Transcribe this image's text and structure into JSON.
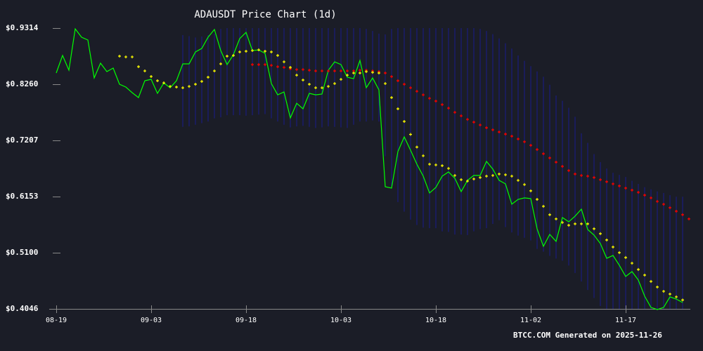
{
  "chart_data": {
    "type": "line",
    "title": "ADAUSDT Price Chart (1d)",
    "xlabel": "",
    "ylabel": "",
    "ylim": [
      0.4046,
      0.9314
    ],
    "y_ticks": [
      "$0.9314",
      "$0.8260",
      "$0.7207",
      "$0.6153",
      "$0.5100",
      "$0.4046"
    ],
    "y_tick_values": [
      0.9314,
      0.826,
      0.7207,
      0.6153,
      0.51,
      0.4046
    ],
    "x_ticks": [
      "08-19",
      "09-03",
      "09-18",
      "10-03",
      "10-18",
      "11-02",
      "11-17"
    ],
    "x_tick_day_index": [
      0,
      15,
      30,
      45,
      60,
      75,
      90
    ],
    "start_date": "08-19",
    "end_date": "11-26",
    "grid": false,
    "legend": "none",
    "series": [
      {
        "name": "Price",
        "color": "#00ff00",
        "style": "line",
        "start_index": 0,
        "values": [
          0.8471,
          0.88,
          0.8524,
          0.93,
          0.9143,
          0.909,
          0.8379,
          0.8655,
          0.8497,
          0.8563,
          0.826,
          0.8208,
          0.8102,
          0.801,
          0.8326,
          0.8352,
          0.8089,
          0.8286,
          0.8194,
          0.8326,
          0.8642,
          0.8642,
          0.8866,
          0.8932,
          0.9143,
          0.9288,
          0.8892,
          0.8629,
          0.8813,
          0.9116,
          0.9234,
          0.8892,
          0.8905,
          0.884,
          0.8273,
          0.8062,
          0.8115,
          0.7628,
          0.7904,
          0.7799,
          0.8089,
          0.8062,
          0.8076,
          0.8523,
          0.8681,
          0.8629,
          0.8392,
          0.8365,
          0.8708,
          0.8194,
          0.8379,
          0.8155,
          0.6338,
          0.6312,
          0.6997,
          0.7273,
          0.7023,
          0.676,
          0.6536,
          0.622,
          0.6325,
          0.6536,
          0.6615,
          0.6497,
          0.6246,
          0.6457,
          0.6549,
          0.6549,
          0.6813,
          0.6668,
          0.6457,
          0.6391,
          0.6009,
          0.6101,
          0.6128,
          0.6115,
          0.5549,
          0.5219,
          0.5443,
          0.5311,
          0.5759,
          0.568,
          0.5786,
          0.5918,
          0.5536,
          0.543,
          0.5272,
          0.4995,
          0.5048,
          0.4864,
          0.4653,
          0.4745,
          0.4587,
          0.4284,
          0.4073,
          0.4033,
          0.4073,
          0.4271,
          0.4231,
          0.4165
        ]
      },
      {
        "name": "SMA20",
        "color": "#ffff00",
        "style": "markers",
        "start_index": 10,
        "values": [
          0.8787,
          0.8773,
          0.8773,
          0.859,
          0.851,
          0.8405,
          0.8326,
          0.8286,
          0.822,
          0.8208,
          0.8194,
          0.822,
          0.826,
          0.8313,
          0.8392,
          0.851,
          0.8642,
          0.8787,
          0.88,
          0.8866,
          0.8879,
          0.8892,
          0.8905,
          0.8879,
          0.8866,
          0.88,
          0.8681,
          0.8576,
          0.8431,
          0.8339,
          0.826,
          0.8194,
          0.8194,
          0.822,
          0.8273,
          0.8352,
          0.8431,
          0.8471,
          0.8471,
          0.8497,
          0.8483,
          0.8471,
          0.8273,
          0.801,
          0.7799,
          0.7562,
          0.7319,
          0.7082,
          0.6918,
          0.676,
          0.6747,
          0.6733,
          0.6681,
          0.6549,
          0.647,
          0.6444,
          0.6483,
          0.651,
          0.6536,
          0.6549,
          0.6576,
          0.6562,
          0.6536,
          0.6457,
          0.6378,
          0.626,
          0.6101,
          0.597,
          0.5812,
          0.5733,
          0.5667,
          0.5615,
          0.5641,
          0.5641,
          0.5641,
          0.5549,
          0.5457,
          0.5338,
          0.5207,
          0.5101,
          0.5009,
          0.4903,
          0.4785,
          0.468,
          0.4561,
          0.4456,
          0.4376,
          0.4324,
          0.4271,
          0.4212
        ]
      },
      {
        "name": "SMA50",
        "color": "#ff0000",
        "style": "markers",
        "start_index": 31,
        "values": [
          0.8629,
          0.8629,
          0.8629,
          0.8615,
          0.8589,
          0.8576,
          0.855,
          0.8536,
          0.8536,
          0.8523,
          0.851,
          0.851,
          0.851,
          0.851,
          0.851,
          0.851,
          0.851,
          0.8523,
          0.8523,
          0.851,
          0.8497,
          0.8471,
          0.8404,
          0.8326,
          0.826,
          0.8194,
          0.8128,
          0.8062,
          0.7996,
          0.7944,
          0.7878,
          0.7812,
          0.7733,
          0.7667,
          0.7601,
          0.7549,
          0.7496,
          0.7444,
          0.7405,
          0.7365,
          0.7325,
          0.7286,
          0.7233,
          0.7181,
          0.7115,
          0.7036,
          0.6957,
          0.6878,
          0.6799,
          0.672,
          0.6641,
          0.6576,
          0.6549,
          0.6536,
          0.651,
          0.647,
          0.6431,
          0.6391,
          0.6352,
          0.6312,
          0.6273,
          0.6233,
          0.618,
          0.6128,
          0.6062,
          0.6009,
          0.5944,
          0.5878,
          0.5812,
          0.5733
        ]
      }
    ],
    "bands": {
      "name": "Bollinger Bands",
      "color": "#1a1a8c",
      "style": "vertical-lines",
      "start_index": 20,
      "upper": [
        0.9182,
        0.9163,
        0.9138,
        0.9156,
        0.9182,
        0.9208,
        0.93,
        0.9314,
        0.9314,
        0.9314,
        0.9314,
        0.9314,
        0.9314,
        0.9314,
        0.9314,
        0.9314,
        0.9314,
        0.9314,
        0.9314,
        0.9314,
        0.9314,
        0.9314,
        0.9314,
        0.9314,
        0.9314,
        0.9314,
        0.9314,
        0.9314,
        0.9314,
        0.93,
        0.926,
        0.921,
        0.9195,
        0.93,
        0.9314,
        0.9314,
        0.9314,
        0.9314,
        0.9314,
        0.9314,
        0.9314,
        0.9314,
        0.9314,
        0.9314,
        0.9314,
        0.9314,
        0.9314,
        0.93,
        0.926,
        0.92,
        0.912,
        0.903,
        0.893,
        0.88,
        0.87,
        0.86,
        0.85,
        0.84,
        0.825,
        0.805,
        0.795,
        0.782,
        0.765,
        0.734,
        0.716,
        0.695,
        0.68,
        0.668,
        0.66,
        0.656,
        0.652,
        0.645,
        0.639,
        0.633,
        0.629,
        0.625,
        0.622,
        0.618,
        0.615,
        0.615
      ],
      "lower": [
        0.746,
        0.747,
        0.75,
        0.753,
        0.756,
        0.762,
        0.764,
        0.768,
        0.768,
        0.768,
        0.767,
        0.768,
        0.769,
        0.77,
        0.762,
        0.756,
        0.75,
        0.745,
        0.747,
        0.748,
        0.746,
        0.744,
        0.745,
        0.747,
        0.746,
        0.745,
        0.744,
        0.75,
        0.756,
        0.756,
        0.758,
        0.756,
        0.691,
        0.634,
        0.605,
        0.587,
        0.572,
        0.562,
        0.557,
        0.556,
        0.556,
        0.55,
        0.549,
        0.544,
        0.544,
        0.543,
        0.55,
        0.554,
        0.556,
        0.564,
        0.571,
        0.558,
        0.548,
        0.542,
        0.538,
        0.533,
        0.517,
        0.512,
        0.504,
        0.499,
        0.495,
        0.486,
        0.472,
        0.456,
        0.44,
        0.425,
        0.41,
        0.4046,
        0.4046,
        0.4046,
        0.4046,
        0.4046,
        0.4046,
        0.4046,
        0.4046,
        0.4046,
        0.4046,
        0.4046,
        0.4046,
        0.4046
      ]
    }
  },
  "header": {
    "title": "ADAUSDT Price Chart (1d)"
  },
  "footer": {
    "text": "BTCC.COM Generated on 2025-11-26"
  },
  "colors": {
    "background": "#1b1d27",
    "axis": "#888888",
    "price": "#00ff00",
    "sma20": "#ffff00",
    "sma50": "#ff0000",
    "bands": "#1a1a8c"
  }
}
